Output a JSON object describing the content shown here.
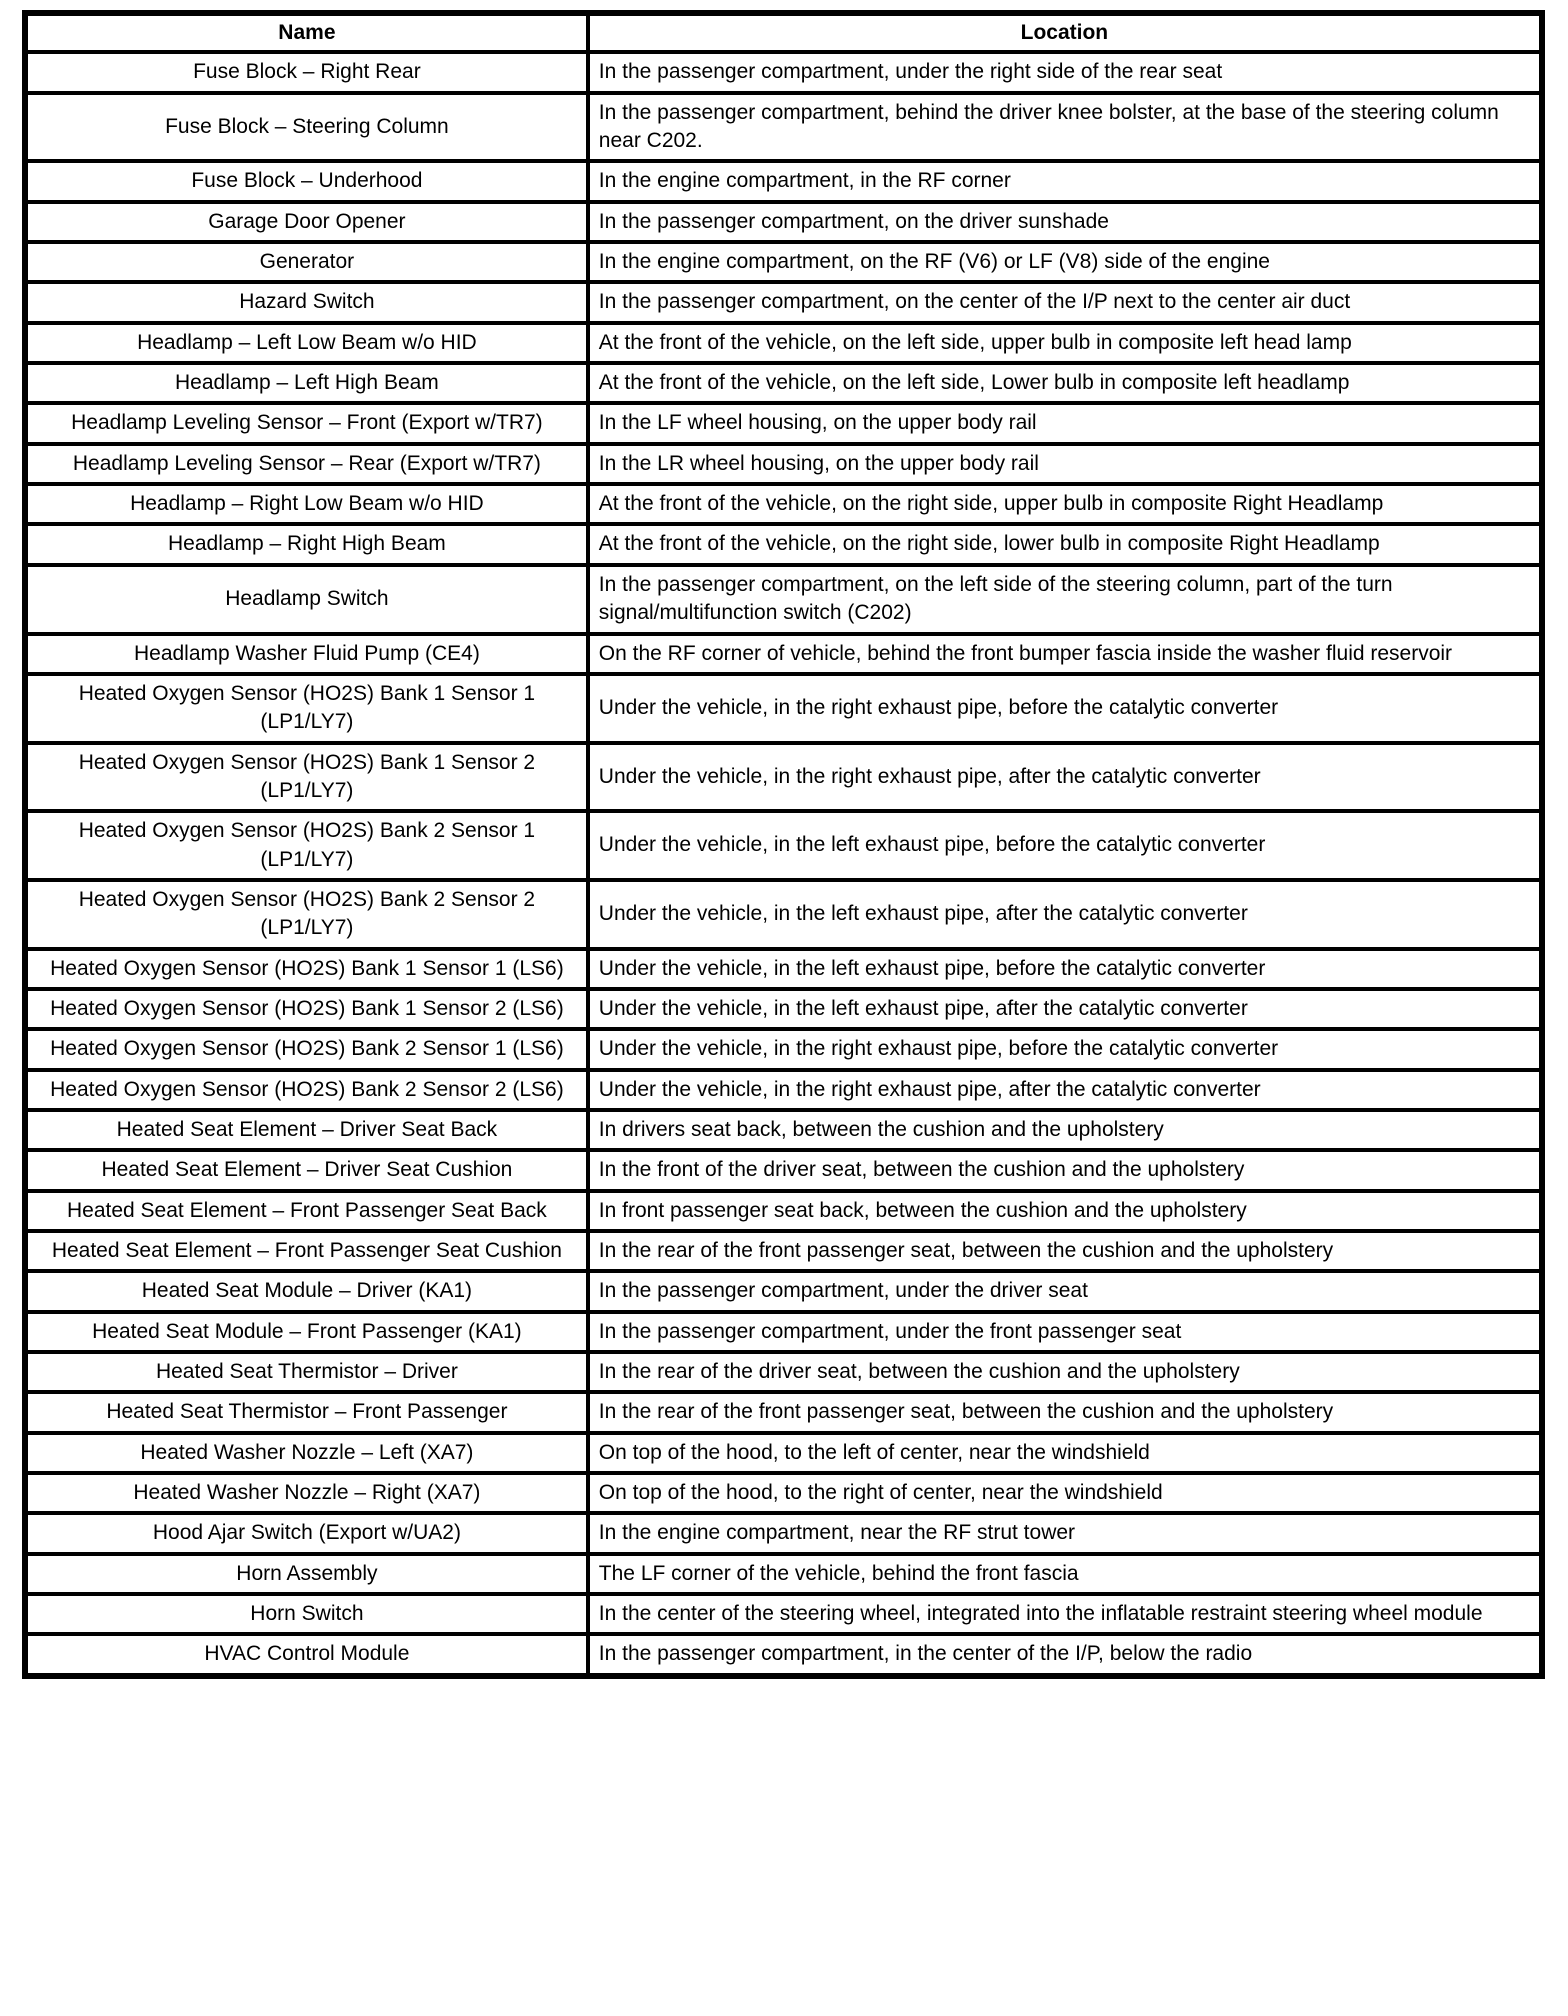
{
  "table": {
    "headers": [
      "Name",
      "Location"
    ],
    "rows": [
      {
        "name": "Fuse Block – Right Rear",
        "location": "In the passenger compartment, under the right side of the rear seat"
      },
      {
        "name": "Fuse Block – Steering Column",
        "location": "In the passenger compartment, behind the driver knee bolster, at the base of the steering column near C202."
      },
      {
        "name": "Fuse Block – Underhood",
        "location": "In the engine compartment, in the RF corner"
      },
      {
        "name": "Garage Door Opener",
        "location": "In the passenger compartment, on the driver sunshade"
      },
      {
        "name": "Generator",
        "location": "In the engine compartment, on the RF (V6) or LF (V8) side of the engine"
      },
      {
        "name": "Hazard Switch",
        "location": "In the passenger compartment, on the center of the I/P next to the center air duct"
      },
      {
        "name": "Headlamp – Left Low Beam w/o HID",
        "location": "At the front of the vehicle, on the left side, upper bulb in composite left head lamp"
      },
      {
        "name": "Headlamp – Left High Beam",
        "location": "At the front of the vehicle, on the left side, Lower bulb in composite left headlamp"
      },
      {
        "name": "Headlamp Leveling Sensor – Front (Export w/TR7)",
        "location": "In the LF wheel housing, on the upper body rail"
      },
      {
        "name": "Headlamp Leveling Sensor – Rear (Export w/TR7)",
        "location": "In the LR wheel housing, on the upper body rail"
      },
      {
        "name": "Headlamp – Right Low Beam w/o HID",
        "location": "At the front of the vehicle, on the right side, upper bulb in composite Right Headlamp"
      },
      {
        "name": "Headlamp – Right High Beam",
        "location": "At the front of the vehicle, on the right side, lower bulb in composite Right Headlamp"
      },
      {
        "name": "Headlamp Switch",
        "location": "In the passenger compartment, on the left side of the steering column, part of the turn signal/multifunction switch (C202)"
      },
      {
        "name": "Headlamp Washer Fluid Pump (CE4)",
        "location": "On the RF corner of vehicle, behind the front bumper fascia inside the washer fluid reservoir"
      },
      {
        "name": "Heated Oxygen Sensor (HO2S) Bank 1 Sensor 1 (LP1/LY7)",
        "location": "Under the vehicle, in the right exhaust pipe, before the catalytic converter"
      },
      {
        "name": "Heated Oxygen Sensor (HO2S) Bank 1 Sensor 2 (LP1/LY7)",
        "location": "Under the vehicle, in the right exhaust pipe, after the catalytic converter"
      },
      {
        "name": "Heated Oxygen Sensor (HO2S) Bank 2 Sensor 1 (LP1/LY7)",
        "location": "Under the vehicle, in the left exhaust pipe, before the catalytic converter"
      },
      {
        "name": "Heated Oxygen Sensor (HO2S) Bank 2 Sensor 2 (LP1/LY7)",
        "location": "Under the vehicle, in the left exhaust pipe, after the catalytic converter"
      },
      {
        "name": "Heated Oxygen Sensor (HO2S) Bank 1 Sensor 1 (LS6)",
        "location": "Under the vehicle, in the left exhaust pipe, before the catalytic converter"
      },
      {
        "name": "Heated Oxygen Sensor (HO2S) Bank 1 Sensor 2 (LS6)",
        "location": "Under the vehicle, in the left exhaust pipe, after the catalytic converter"
      },
      {
        "name": "Heated Oxygen Sensor (HO2S) Bank 2 Sensor 1 (LS6)",
        "location": "Under the vehicle, in the right exhaust pipe, before the catalytic converter"
      },
      {
        "name": "Heated Oxygen Sensor (HO2S) Bank 2 Sensor 2 (LS6)",
        "location": "Under the vehicle, in the right exhaust pipe, after the catalytic converter"
      },
      {
        "name": "Heated Seat Element – Driver Seat Back",
        "location": "In drivers seat back, between the cushion and the upholstery"
      },
      {
        "name": "Heated Seat Element – Driver Seat Cushion",
        "location": "In the front of the driver seat, between the cushion and the upholstery"
      },
      {
        "name": "Heated Seat Element – Front Passenger Seat Back",
        "location": "In front passenger seat back, between the cushion and the upholstery"
      },
      {
        "name": "Heated Seat Element – Front Passenger Seat Cushion",
        "location": "In the rear of the front passenger seat, between the cushion and the upholstery"
      },
      {
        "name": "Heated Seat Module – Driver (KA1)",
        "location": "In the passenger compartment, under the driver seat"
      },
      {
        "name": "Heated Seat Module – Front Passenger (KA1)",
        "location": "In the passenger compartment, under the front passenger seat"
      },
      {
        "name": "Heated Seat Thermistor – Driver",
        "location": "In the rear of the driver seat, between the cushion and the upholstery"
      },
      {
        "name": "Heated Seat Thermistor – Front Passenger",
        "location": "In the rear of the front passenger seat, between the cushion and the upholstery"
      },
      {
        "name": "Heated Washer Nozzle – Left (XA7)",
        "location": "On top of the hood, to the left of center, near the windshield"
      },
      {
        "name": "Heated Washer Nozzle – Right (XA7)",
        "location": "On top of the hood, to the right of center, near the windshield"
      },
      {
        "name": "Hood Ajar Switch (Export w/UA2)",
        "location": "In the engine compartment, near the RF strut tower"
      },
      {
        "name": "Horn Assembly",
        "location": "The LF corner of the vehicle, behind the front fascia"
      },
      {
        "name": "Horn Switch",
        "location": "In the center of the steering wheel, integrated into the inflatable restraint steering wheel module"
      },
      {
        "name": "HVAC Control Module",
        "location": "In the passenger compartment, in the center of the I/P, below the radio"
      }
    ]
  }
}
